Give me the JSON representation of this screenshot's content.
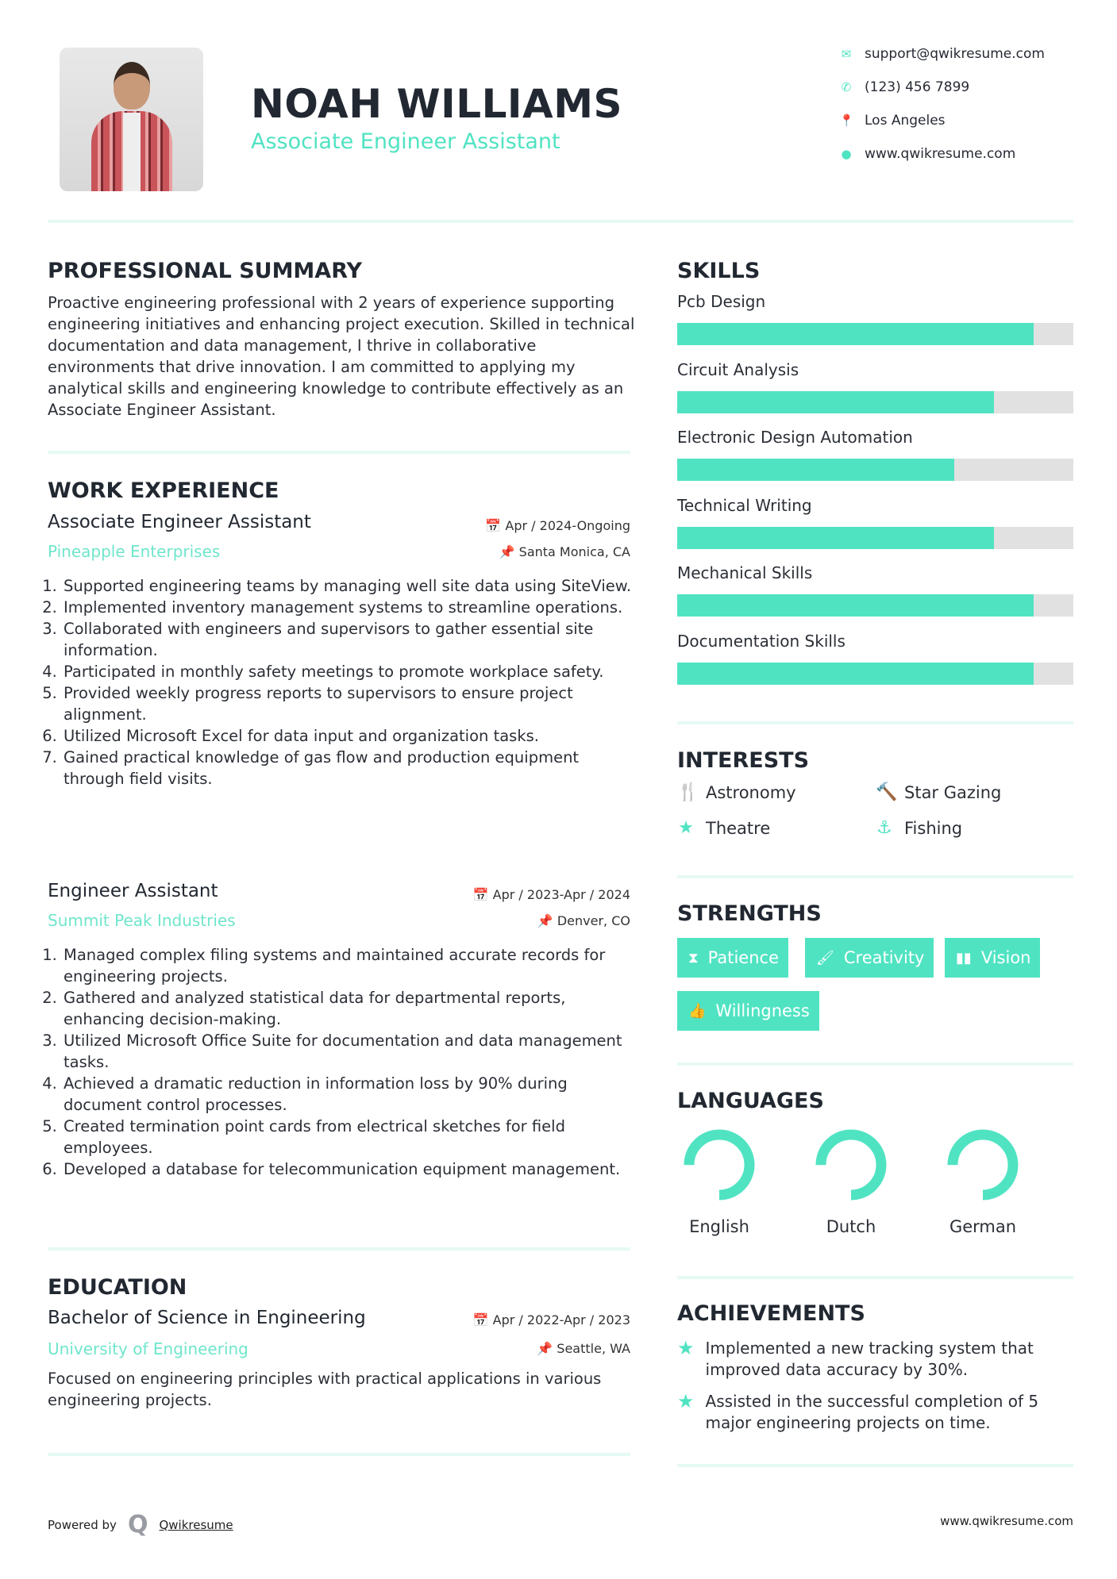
{
  "header": {
    "name": "NOAH WILLIAMS",
    "role": "Associate Engineer Assistant",
    "contacts": [
      {
        "icon": "envelope-icon",
        "text": "support@qwikresume.com"
      },
      {
        "icon": "phone-icon",
        "text": "(123) 456 7899"
      },
      {
        "icon": "map-pin-icon",
        "text": "Los Angeles"
      },
      {
        "icon": "globe-icon",
        "text": "www.qwikresume.com"
      }
    ]
  },
  "summary": {
    "title": "PROFESSIONAL SUMMARY",
    "text": "Proactive engineering professional with 2 years of experience supporting engineering initiatives and enhancing project execution. Skilled in technical documentation and data management, I thrive in collaborative environments that drive innovation. I am committed to applying my analytical skills and engineering knowledge to contribute effectively as an Associate Engineer Assistant."
  },
  "experience": {
    "title": "WORK EXPERIENCE",
    "jobs": [
      {
        "title": "Associate Engineer Assistant",
        "company": "Pineapple Enterprises",
        "date": "Apr / 2024-Ongoing",
        "location": "Santa Monica, CA",
        "items": [
          "Supported engineering teams by managing well site data using SiteView.",
          "Implemented inventory management systems to streamline operations.",
          "Collaborated with engineers and supervisors to gather essential site information.",
          "Participated in monthly safety meetings to promote workplace safety.",
          "Provided weekly progress reports to supervisors to ensure project alignment.",
          "Utilized Microsoft Excel for data input and organization tasks.",
          "Gained practical knowledge of gas flow and production equipment through field visits."
        ]
      },
      {
        "title": "Engineer Assistant",
        "company": "Summit Peak Industries",
        "date": "Apr / 2023-Apr / 2024",
        "location": "Denver, CO",
        "items": [
          "Managed complex filing systems and maintained accurate records for engineering projects.",
          "Gathered and analyzed statistical data for departmental reports, enhancing decision-making.",
          "Utilized Microsoft Office Suite for documentation and data management tasks.",
          "Achieved a dramatic reduction in information loss by 90% during document control processes.",
          "Created termination point cards from electrical sketches for field employees.",
          "Developed a database for telecommunication equipment management."
        ]
      }
    ]
  },
  "education": {
    "title": "EDUCATION",
    "degree": "Bachelor of Science in Engineering",
    "school": "University of Engineering",
    "date": "Apr / 2022-Apr / 2023",
    "location": "Seattle, WA",
    "text": "Focused on engineering principles with practical applications in various engineering projects."
  },
  "skills": {
    "title": "SKILLS",
    "items": [
      {
        "name": "Pcb Design",
        "level": 0.9
      },
      {
        "name": "Circuit Analysis",
        "level": 0.8
      },
      {
        "name": "Electronic Design Automation",
        "level": 0.7
      },
      {
        "name": "Technical Writing",
        "level": 0.8
      },
      {
        "name": "Mechanical Skills",
        "level": 0.9
      },
      {
        "name": "Documentation Skills",
        "level": 0.9
      }
    ]
  },
  "interests": {
    "title": "INTERESTS",
    "items": [
      {
        "icon": "cutlery-icon",
        "glyph": "🍴",
        "label": "Astronomy"
      },
      {
        "icon": "gavel-icon",
        "glyph": "🔨",
        "label": "Star Gazing"
      },
      {
        "icon": "star-icon",
        "glyph": "★",
        "label": "Theatre"
      },
      {
        "icon": "anchor-icon",
        "glyph": "⚓",
        "label": "Fishing"
      }
    ]
  },
  "strengths": {
    "title": "STRENGTHS",
    "items": [
      {
        "icon": "hourglass-icon",
        "glyph": "⧗",
        "label": "Patience"
      },
      {
        "icon": "paintbrush-icon",
        "glyph": "🖌",
        "label": "Creativity"
      },
      {
        "icon": "binoculars-icon",
        "glyph": "▮▮",
        "label": "Vision"
      },
      {
        "icon": "thumbs-up-icon",
        "glyph": "👍",
        "label": "Willingness"
      }
    ]
  },
  "languages": {
    "title": "LANGUAGES",
    "items": [
      {
        "name": "English",
        "level": 0.75
      },
      {
        "name": "Dutch",
        "level": 0.75
      },
      {
        "name": "German",
        "level": 0.75
      }
    ]
  },
  "achievements": {
    "title": "ACHIEVEMENTS",
    "items": [
      "Implemented a new tracking system that improved data accuracy by 30%.",
      "Assisted in the successful completion of 5 major engineering projects on time."
    ]
  },
  "footer": {
    "powered": "Powered by",
    "brand": "Qwikresume",
    "url": "www.qwikresume.com"
  },
  "colors": {
    "accent": "#50e3c2",
    "text": "#222831",
    "bar_bg": "#e1e1e1"
  }
}
